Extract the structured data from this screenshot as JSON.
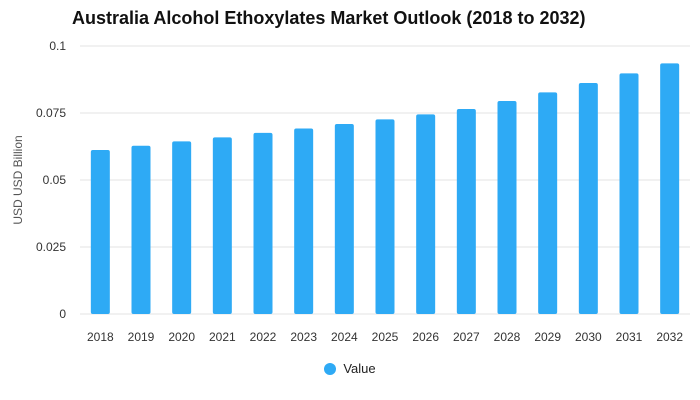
{
  "chart_data": {
    "type": "bar",
    "title": "Australia Alcohol Ethoxylates Market Outlook (2018 to 2032)",
    "ylabel": "USD USD Billion",
    "xlabel": "",
    "categories": [
      "2018",
      "2019",
      "2020",
      "2021",
      "2022",
      "2023",
      "2024",
      "2025",
      "2026",
      "2027",
      "2028",
      "2029",
      "2030",
      "2031",
      "2032"
    ],
    "series": [
      {
        "name": "Value",
        "color": "#2eaaf5",
        "values": [
          0.0612,
          0.0628,
          0.0644,
          0.0659,
          0.0676,
          0.0692,
          0.0709,
          0.0726,
          0.0745,
          0.0765,
          0.0795,
          0.0827,
          0.0862,
          0.0898,
          0.0935
        ]
      }
    ],
    "ylim": [
      0,
      0.1
    ],
    "yticks": [
      0,
      0.025,
      0.05,
      0.075,
      0.1
    ],
    "ytick_labels": [
      "0",
      "0.025",
      "0.05",
      "0.075",
      "0.1"
    ],
    "grid": true,
    "legend_position": "bottom-center"
  }
}
